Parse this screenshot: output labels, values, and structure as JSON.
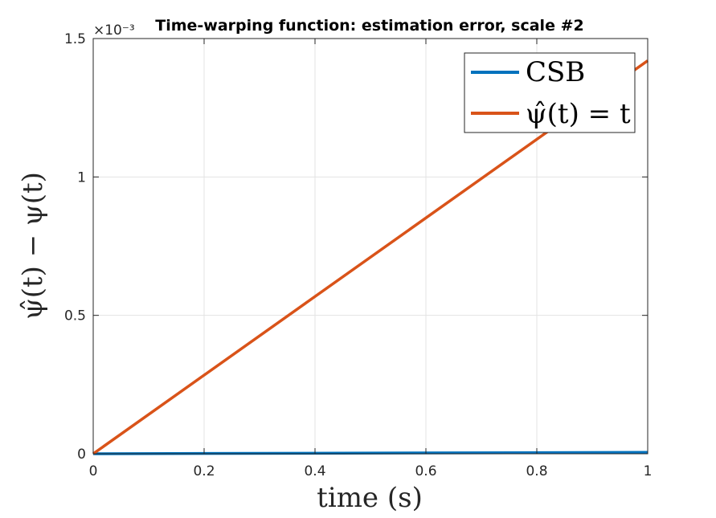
{
  "chart_data": {
    "type": "line",
    "title": "Time-warping function: estimation error, scale #2",
    "xlabel": "time (s)",
    "ylabel": "ψ̂(t) − ψ(t)",
    "xlim": [
      0,
      1
    ],
    "ylim": [
      0,
      1.5
    ],
    "y_exponent": "×10⁻³",
    "xticks": [
      0,
      0.2,
      0.4,
      0.6,
      0.8,
      1
    ],
    "xtick_labels": [
      "0",
      "0.2",
      "0.4",
      "0.6",
      "0.8",
      "1"
    ],
    "yticks": [
      0,
      0.5,
      1,
      1.5
    ],
    "ytick_labels": [
      "0",
      "0.5",
      "1",
      "1.5"
    ],
    "grid": true,
    "legend_position": "top-right",
    "series": [
      {
        "name": "CSB",
        "color": "#0072BD",
        "x": [
          0,
          1
        ],
        "y": [
          0,
          0.005
        ]
      },
      {
        "name": "ψ̂(t) = t",
        "color": "#D95319",
        "x": [
          0,
          1
        ],
        "y": [
          0,
          1.42
        ]
      }
    ]
  }
}
